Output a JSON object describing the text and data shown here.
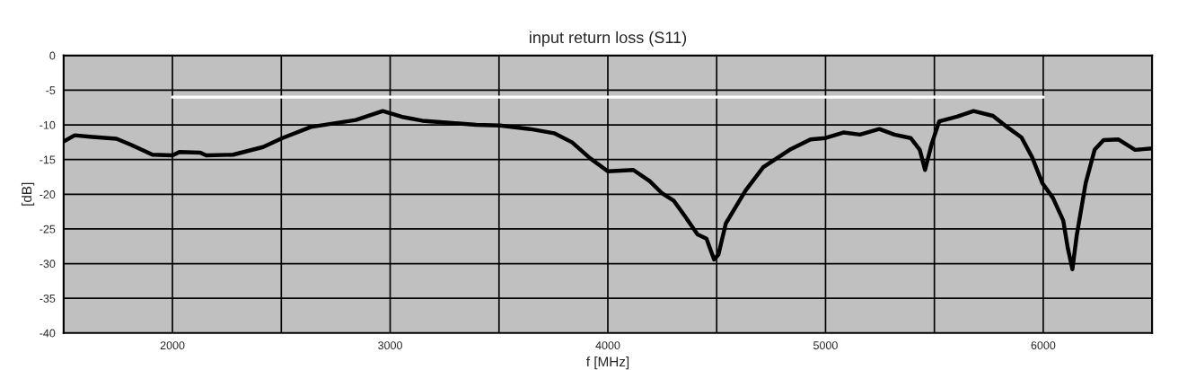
{
  "chart_data": {
    "type": "line",
    "title": "input return loss (S11)",
    "xlabel": "f [MHz]",
    "ylabel": "[dB]",
    "xlim": [
      1500,
      6500
    ],
    "ylim": [
      -40,
      0
    ],
    "xticks": [
      {
        "value": 1500,
        "label": null
      },
      2000,
      {
        "value": 2500,
        "label": null
      },
      3000,
      {
        "value": 3500,
        "label": null
      },
      4000,
      {
        "value": 4500,
        "label": null
      },
      5000,
      {
        "value": 5500,
        "label": null
      },
      6000,
      {
        "value": 6500,
        "label": null
      }
    ],
    "yticks": [
      -40,
      -35,
      -30,
      -25,
      -20,
      -15,
      -10,
      -5,
      0
    ],
    "grid": true,
    "series": [
      {
        "color": "#000000",
        "x": [
          1500,
          1551,
          1620,
          1743,
          1812,
          1908,
          2000,
          2032,
          2128,
          2155,
          2279,
          2416,
          2505,
          2636,
          2842,
          2966,
          3062,
          3148,
          3272,
          3396,
          3505,
          3643,
          3753,
          3835,
          3918,
          4000,
          4117,
          4192,
          4247,
          4302,
          4357,
          4412,
          4453,
          4488,
          4508,
          4542,
          4632,
          4714,
          4835,
          4931,
          5000,
          5082,
          5158,
          5247,
          5316,
          5391,
          5433,
          5457,
          5488,
          5522,
          5604,
          5680,
          5769,
          5838,
          5900,
          5948,
          5996,
          6044,
          6092,
          6113,
          6134,
          6154,
          6195,
          6236,
          6277,
          6346,
          6422,
          6500
        ],
        "values": [
          -12.4,
          -11.5,
          -11.7,
          -12.0,
          -12.9,
          -14.3,
          -14.4,
          -13.9,
          -14.0,
          -14.4,
          -14.3,
          -13.2,
          -11.9,
          -10.3,
          -9.3,
          -8.0,
          -8.9,
          -9.4,
          -9.7,
          -10.0,
          -10.1,
          -10.6,
          -11.2,
          -12.5,
          -14.8,
          -16.7,
          -16.5,
          -18.1,
          -19.8,
          -20.9,
          -23.3,
          -25.8,
          -26.4,
          -29.4,
          -28.7,
          -24.2,
          -19.5,
          -16.1,
          -13.6,
          -12.1,
          -11.9,
          -11.1,
          -11.4,
          -10.6,
          -11.4,
          -11.9,
          -13.6,
          -16.5,
          -12.7,
          -9.5,
          -8.8,
          -8.0,
          -8.7,
          -10.4,
          -11.8,
          -14.6,
          -18.4,
          -20.5,
          -23.8,
          -27.8,
          -30.8,
          -25.9,
          -18.4,
          -13.6,
          -12.2,
          -12.1,
          -13.6,
          -13.4
        ]
      },
      {
        "color": "#ffffff",
        "x": [
          2000,
          6000
        ],
        "values": [
          -6,
          -6
        ]
      }
    ]
  }
}
